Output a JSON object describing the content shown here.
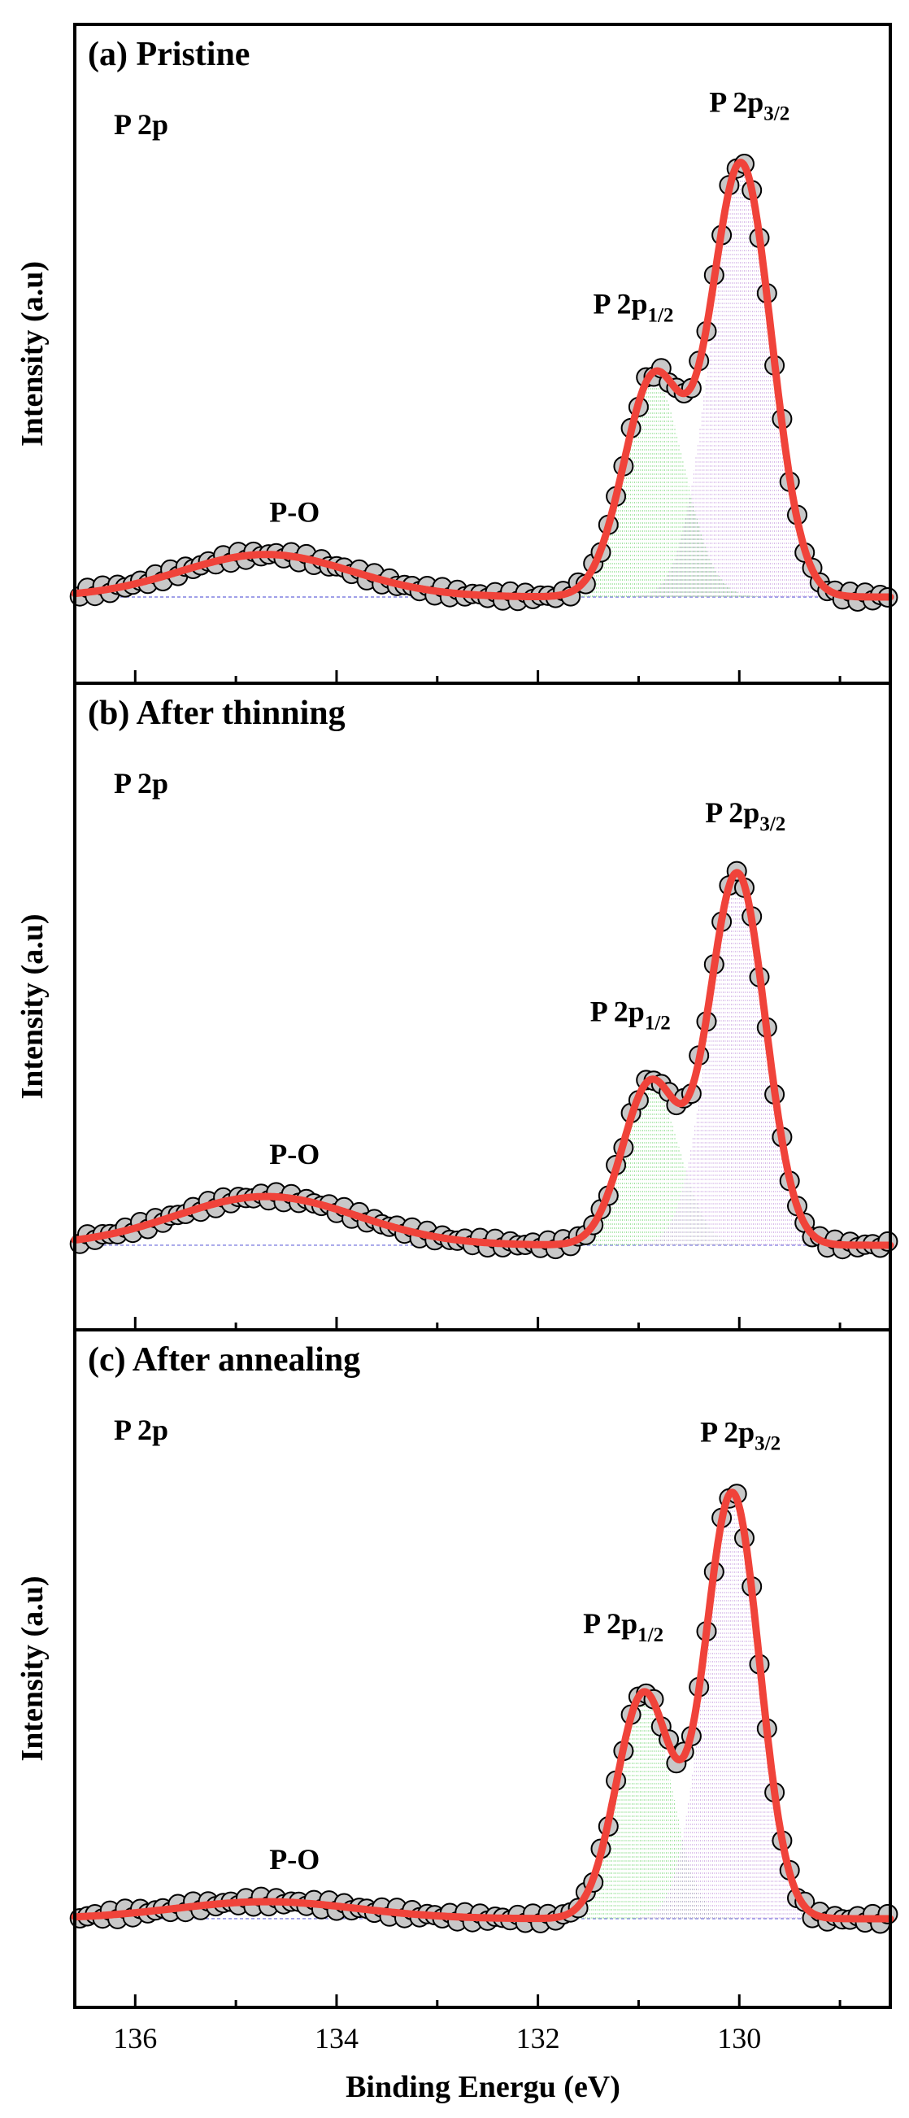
{
  "chart_data": {
    "type": "line",
    "xlabel": "Binding Energu (eV)",
    "xlim": [
      136.6,
      128.5
    ],
    "x_ticks": [
      136,
      134,
      132,
      130
    ],
    "x_tick_labels": [
      "136",
      "134",
      "132",
      "130"
    ],
    "colors": {
      "fit": "#f0433a",
      "raw_fill": "#c8c8c8",
      "raw_edge": "#000000",
      "comp_low": "#7dd87d",
      "comp_high": "#c8a0e0",
      "baseline": "#8080e0"
    },
    "panels": [
      {
        "title": "(a) Pristine",
        "core_level": "P 2p",
        "ylabel": "Intensity (a.u)",
        "baseline": 0.2,
        "ymax": 4.6,
        "peaks": [
          {
            "name": "P 2p3/2",
            "label_main": "P 2p",
            "label_sub": "3/2",
            "center": 129.98,
            "amplitude": 3.65,
            "sigma": 0.3
          },
          {
            "name": "P 2p1/2",
            "label_main": "P 2p",
            "label_sub": "1/2",
            "center": 130.85,
            "amplitude": 1.85,
            "sigma": 0.3
          },
          {
            "name": "P-O",
            "label_main": "P-O",
            "label_sub": "",
            "center": 134.7,
            "amplitude": 0.36,
            "sigma": 0.85
          }
        ]
      },
      {
        "title": "(b) After thinning",
        "core_level": "P 2p",
        "ylabel": "Intensity (a.u)",
        "baseline": 0.2,
        "ymax": 4.6,
        "peaks": [
          {
            "name": "P 2p3/2",
            "label_main": "P 2p",
            "label_sub": "3/2",
            "center": 130.02,
            "amplitude": 3.2,
            "sigma": 0.28
          },
          {
            "name": "P 2p1/2",
            "label_main": "P 2p",
            "label_sub": "1/2",
            "center": 130.88,
            "amplitude": 1.4,
            "sigma": 0.28
          },
          {
            "name": "P-O",
            "label_main": "P-O",
            "label_sub": "",
            "center": 134.7,
            "amplitude": 0.42,
            "sigma": 0.9
          }
        ]
      },
      {
        "title": "(c) After annealing",
        "core_level": "P 2p",
        "ylabel": "Intensity (a.u)",
        "baseline": 0.2,
        "ymax": 4.6,
        "peaks": [
          {
            "name": "P 2p3/2",
            "label_main": "P 2p",
            "label_sub": "3/2",
            "center": 130.07,
            "amplitude": 3.5,
            "sigma": 0.27
          },
          {
            "name": "P 2p1/2",
            "label_main": "P 2p",
            "label_sub": "1/2",
            "center": 130.95,
            "amplitude": 1.85,
            "sigma": 0.27
          },
          {
            "name": "P-O",
            "label_main": "P-O",
            "label_sub": "",
            "center": 134.7,
            "amplitude": 0.14,
            "sigma": 0.9
          }
        ]
      }
    ]
  }
}
